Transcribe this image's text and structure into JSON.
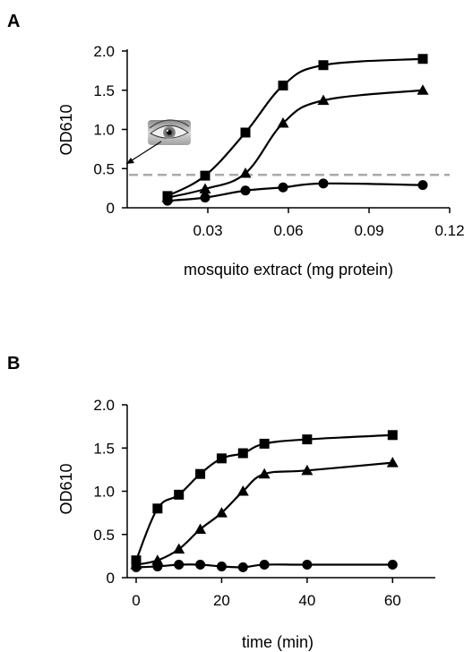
{
  "chart_data": [
    {
      "panel_label": "A",
      "type": "line",
      "xlabel": "mosquito extract (mg protein)",
      "ylabel": "OD610",
      "xlim": [
        0,
        0.12
      ],
      "ylim": [
        0,
        2.0
      ],
      "xticks": [
        "0.03",
        "0.06",
        "0.09",
        "0.12"
      ],
      "yticks": [
        "0",
        "0.5",
        "1.0",
        "1.5",
        "2.0"
      ],
      "threshold": {
        "y": 0.42,
        "style": "dashed",
        "color": "#aaaaaa"
      },
      "series": [
        {
          "marker": "square",
          "x": [
            0.015,
            0.029,
            0.044,
            0.058,
            0.073,
            0.11
          ],
          "y": [
            0.15,
            0.41,
            0.96,
            1.56,
            1.82,
            1.9
          ]
        },
        {
          "marker": "triangle",
          "x": [
            0.015,
            0.029,
            0.044,
            0.058,
            0.073,
            0.11
          ],
          "y": [
            0.13,
            0.24,
            0.44,
            1.08,
            1.37,
            1.5
          ]
        },
        {
          "marker": "circle",
          "x": [
            0.015,
            0.029,
            0.044,
            0.058,
            0.073,
            0.11
          ],
          "y": [
            0.09,
            0.13,
            0.22,
            0.26,
            0.31,
            0.29
          ]
        }
      ],
      "annotation": {
        "icon": "eye-icon"
      }
    },
    {
      "panel_label": "B",
      "type": "line",
      "xlabel": "time (min)",
      "ylabel": "OD610",
      "xlim": [
        0,
        70
      ],
      "ylim": [
        0,
        2.0
      ],
      "xticks": [
        "0",
        "20",
        "40",
        "60"
      ],
      "yticks": [
        "0",
        "0.5",
        "1.0",
        "1.5",
        "2.0"
      ],
      "series": [
        {
          "marker": "square",
          "x": [
            0,
            5,
            10,
            15,
            20,
            25,
            30,
            40,
            60
          ],
          "y": [
            0.2,
            0.8,
            0.96,
            1.2,
            1.38,
            1.44,
            1.55,
            1.6,
            1.65
          ]
        },
        {
          "marker": "triangle",
          "x": [
            0,
            5,
            10,
            15,
            20,
            25,
            30,
            40,
            60
          ],
          "y": [
            0.15,
            0.2,
            0.33,
            0.56,
            0.75,
            1.0,
            1.2,
            1.24,
            1.33
          ]
        },
        {
          "marker": "circle",
          "x": [
            0,
            5,
            10,
            15,
            20,
            25,
            30,
            40,
            60
          ],
          "y": [
            0.12,
            0.13,
            0.15,
            0.15,
            0.13,
            0.12,
            0.15,
            0.15,
            0.15
          ]
        }
      ]
    }
  ]
}
